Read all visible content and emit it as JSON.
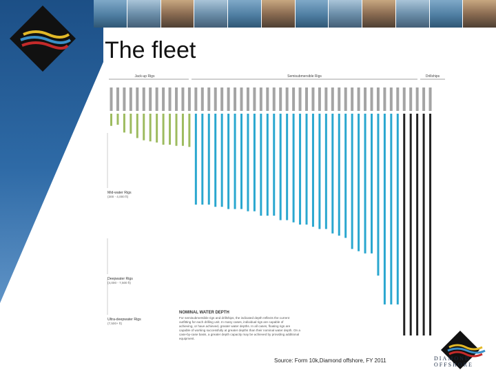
{
  "slide": {
    "title": "The fleet",
    "source_note": "Source: Form 10k,Diamond offshore, FY 2011",
    "logo_text_line1": "DIAMOND",
    "logo_text_line2": "OFFSHORE"
  },
  "photo_strip": {
    "tiles": [
      "rig-photo",
      "rig-photo",
      "rig-photo",
      "rig-photo",
      "rig-photo",
      "rig-photo",
      "rig-photo",
      "rig-photo",
      "rig-photo",
      "rig-photo",
      "rig-photo",
      "rig-photo"
    ]
  },
  "chart_data": {
    "type": "bar",
    "group_headers": [
      "Jack-up Rigs",
      "Semisubmersible Rigs",
      "Drillships"
    ],
    "bar_groups": [
      {
        "name": "jackup",
        "count": 13,
        "color": "#9dbb5f",
        "depth_value": 1
      },
      {
        "name": "semisub",
        "count": 32,
        "color": "#2aa7cf",
        "depth_value": 9
      },
      {
        "name": "drillship",
        "count": 5,
        "color": "#222222",
        "depth_value": 10
      }
    ],
    "values": [
      0.55,
      0.5,
      0.85,
      0.9,
      1.1,
      1.2,
      1.25,
      1.3,
      1.4,
      1.4,
      1.45,
      1.45,
      1.5,
      4.1,
      4.1,
      4.1,
      4.2,
      4.2,
      4.3,
      4.3,
      4.3,
      4.4,
      4.4,
      4.6,
      4.6,
      4.6,
      4.8,
      4.8,
      4.9,
      5.0,
      5.0,
      5.1,
      5.2,
      5.2,
      5.4,
      5.5,
      5.6,
      6.1,
      6.2,
      6.3,
      6.3,
      7.3,
      8.6,
      8.6,
      8.6,
      10,
      10,
      10,
      10,
      10
    ],
    "band_labels": [
      {
        "name": "Mid-water Rigs",
        "range": "(300 - 4,000 ft)"
      },
      {
        "name": "Deepwater Rigs",
        "range": "(4,000 - 7,500 ft)"
      },
      {
        "name": "Ultra-deepwater Rigs",
        "range": "(7,500+ ft)"
      }
    ],
    "note_title": "NOMINAL WATER DEPTH",
    "note_text": "For semisubmersible rigs and drillships, the indicated depth reflects the current outfitting for each drilling unit. In many cases, individual rigs are capable of achieving, or have achieved, greater water depths. In all cases, floating rigs are capable of working successfully at greater depths than their nominal water depth. On a case-by-case basis, a greater depth capacity may be achieved by providing additional equipment."
  }
}
